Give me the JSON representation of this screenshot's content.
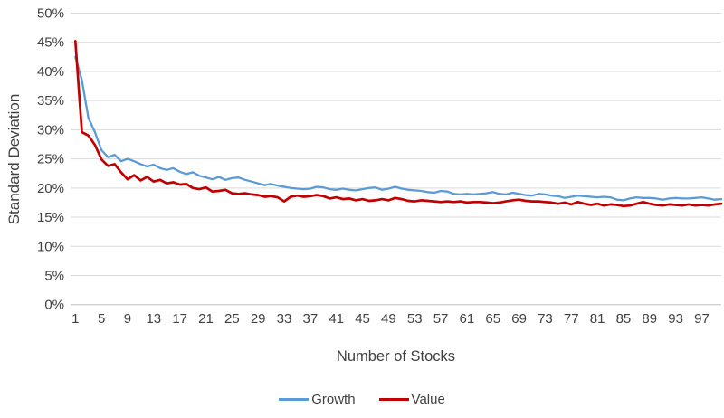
{
  "chart_data": {
    "type": "line",
    "title": "",
    "xlabel": "Number of Stocks",
    "ylabel": "Standard Deviation",
    "x_range": [
      1,
      100
    ],
    "x_ticks": [
      1,
      5,
      9,
      13,
      17,
      21,
      25,
      29,
      33,
      37,
      41,
      45,
      49,
      53,
      57,
      61,
      65,
      69,
      73,
      77,
      81,
      85,
      89,
      93,
      97
    ],
    "y_ticks": [
      0,
      5,
      10,
      15,
      20,
      25,
      30,
      35,
      40,
      45,
      50
    ],
    "y_tick_suffix": "%",
    "ylim": [
      0,
      50
    ],
    "grid": "horizontal",
    "gridline_color": "#D9D9D9",
    "axis_text_color": "#404040",
    "legend_position": "bottom",
    "series": [
      {
        "name": "Growth",
        "color": "#5B9BD5",
        "values": [
          42.5,
          38.5,
          32.0,
          29.6,
          26.5,
          25.3,
          25.7,
          24.6,
          25.0,
          24.6,
          24.1,
          23.7,
          24.0,
          23.4,
          23.1,
          23.4,
          22.8,
          22.4,
          22.7,
          22.1,
          21.8,
          21.5,
          21.9,
          21.4,
          21.7,
          21.8,
          21.4,
          21.1,
          20.8,
          20.5,
          20.7,
          20.4,
          20.2,
          20.0,
          19.9,
          19.8,
          19.9,
          20.2,
          20.1,
          19.8,
          19.7,
          19.9,
          19.7,
          19.6,
          19.8,
          20.0,
          20.1,
          19.7,
          19.9,
          20.2,
          19.9,
          19.7,
          19.6,
          19.5,
          19.3,
          19.2,
          19.5,
          19.4,
          19.0,
          18.9,
          19.0,
          18.9,
          19.0,
          19.1,
          19.3,
          19.0,
          18.9,
          19.2,
          19.0,
          18.8,
          18.7,
          19.0,
          18.9,
          18.7,
          18.6,
          18.3,
          18.5,
          18.7,
          18.6,
          18.5,
          18.4,
          18.5,
          18.4,
          18.0,
          17.9,
          18.2,
          18.4,
          18.3,
          18.3,
          18.2,
          18.0,
          18.2,
          18.3,
          18.2,
          18.2,
          18.3,
          18.4,
          18.2,
          18.0,
          18.1
        ]
      },
      {
        "name": "Value",
        "color": "#C00000",
        "values": [
          45.2,
          29.6,
          29.0,
          27.4,
          24.9,
          23.8,
          24.1,
          22.7,
          21.5,
          22.2,
          21.3,
          21.9,
          21.1,
          21.4,
          20.8,
          21.0,
          20.6,
          20.7,
          20.0,
          19.8,
          20.1,
          19.4,
          19.5,
          19.7,
          19.1,
          19.0,
          19.1,
          18.9,
          18.8,
          18.5,
          18.6,
          18.4,
          17.7,
          18.5,
          18.7,
          18.5,
          18.6,
          18.8,
          18.6,
          18.2,
          18.4,
          18.1,
          18.2,
          17.9,
          18.1,
          17.8,
          17.9,
          18.1,
          17.9,
          18.3,
          18.1,
          17.8,
          17.7,
          17.9,
          17.8,
          17.7,
          17.6,
          17.7,
          17.6,
          17.7,
          17.5,
          17.6,
          17.6,
          17.5,
          17.4,
          17.5,
          17.7,
          17.9,
          18.0,
          17.8,
          17.7,
          17.7,
          17.6,
          17.5,
          17.3,
          17.5,
          17.2,
          17.6,
          17.3,
          17.1,
          17.3,
          17.0,
          17.2,
          17.1,
          16.9,
          17.0,
          17.3,
          17.6,
          17.3,
          17.1,
          17.0,
          17.2,
          17.1,
          17.0,
          17.2,
          17.0,
          17.1,
          17.0,
          17.2,
          17.3
        ]
      }
    ]
  }
}
